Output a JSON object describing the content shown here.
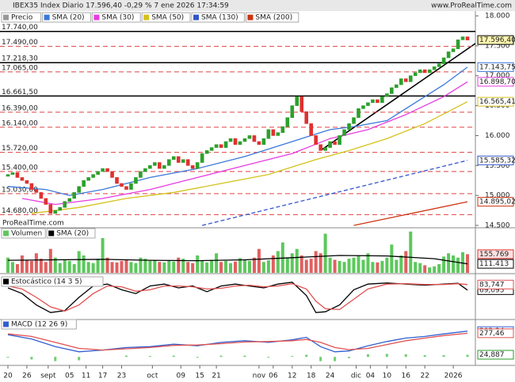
{
  "chart_data": [
    {
      "type": "candlestick",
      "title": "IBEX35 Index Diario 17.596,40 -0,29 % 7 ene 2026 17:34:59",
      "source": "www.ProRealTime.com",
      "watermark": "ProRealTime.com",
      "name": "Precio",
      "up_color": "#2ca02c",
      "down_color": "#e03030",
      "open": [
        15320,
        15350,
        15380,
        15300,
        15250,
        15200,
        15100,
        15050,
        14950,
        14850,
        14700,
        14750,
        14800,
        14900,
        14950,
        15050,
        15150,
        15250,
        15300,
        15350,
        15400,
        15450,
        15400,
        15300,
        15200,
        15150,
        15100,
        15200,
        15300,
        15400,
        15450,
        15500,
        15550,
        15450,
        15500,
        15600,
        15650,
        15550,
        15600,
        15500,
        15450,
        15550,
        15700,
        15750,
        15800,
        15850,
        15800,
        15900,
        15950,
        15850,
        15900,
        15950,
        16000,
        15900,
        15850,
        15950,
        16100,
        16000,
        16050,
        16150,
        16300,
        16500,
        16650,
        16400,
        16200,
        16000,
        15850,
        15750,
        15800,
        15900,
        15850,
        16000,
        16100,
        16200,
        16300,
        16450,
        16500,
        16550,
        16600,
        16550,
        16650,
        16700,
        16800,
        16850,
        16950,
        16900,
        17000,
        17050,
        17100,
        17050,
        17100,
        17150,
        17200,
        17300,
        17400,
        17450,
        17600,
        17650
      ],
      "close": [
        15350,
        15380,
        15300,
        15250,
        15200,
        15100,
        15050,
        14950,
        14850,
        14700,
        14750,
        14800,
        14900,
        14950,
        15050,
        15150,
        15250,
        15300,
        15350,
        15400,
        15450,
        15400,
        15300,
        15200,
        15150,
        15100,
        15200,
        15300,
        15400,
        15450,
        15500,
        15550,
        15450,
        15500,
        15600,
        15650,
        15550,
        15600,
        15500,
        15450,
        15550,
        15700,
        15750,
        15800,
        15850,
        15800,
        15900,
        15950,
        15850,
        15900,
        15950,
        16000,
        15900,
        15850,
        15950,
        16100,
        16000,
        16050,
        16150,
        16300,
        16500,
        16650,
        16400,
        16200,
        16000,
        15850,
        15750,
        15800,
        15900,
        15850,
        16000,
        16100,
        16200,
        16300,
        16450,
        16500,
        16550,
        16600,
        16550,
        16650,
        16700,
        16800,
        16850,
        16950,
        16900,
        17000,
        17050,
        17100,
        17050,
        17100,
        17150,
        17200,
        17300,
        17400,
        17450,
        17600,
        17650,
        17596.4
      ],
      "last_label": "17.596,40",
      "xlim": [
        -1,
        98
      ],
      "ylim": [
        14460,
        18080
      ],
      "yticks": [
        {
          "value": 18000,
          "label": "18.000"
        },
        {
          "value": 17500,
          "label": "17.500"
        },
        {
          "value": 17000,
          "label": "17.000"
        },
        {
          "value": 16500,
          "label": "16.500"
        },
        {
          "value": 16000,
          "label": "16.000"
        },
        {
          "value": 15500,
          "label": "15.500"
        },
        {
          "value": 15000,
          "label": "15.000"
        },
        {
          "value": 14500,
          "label": "14.500"
        }
      ],
      "levels": [
        {
          "value": 17740,
          "label": "17.740,00",
          "style": "solid"
        },
        {
          "value": 17490,
          "label": "17.490,00",
          "style": "dashed"
        },
        {
          "value": 17218.3,
          "label": "17.218,30",
          "style": "solid"
        },
        {
          "value": 17065,
          "label": "17.065,00",
          "style": "dashed"
        },
        {
          "value": 16661.5,
          "label": "16.661,50",
          "style": "solid"
        },
        {
          "value": 16390,
          "label": "16.390,00",
          "style": "dashed"
        },
        {
          "value": 16140,
          "label": "16.140,00",
          "style": "dashed"
        },
        {
          "value": 15720,
          "label": "15.720,00",
          "style": "dashed"
        },
        {
          "value": 15400,
          "label": "15.400,00",
          "style": "dashed"
        },
        {
          "value": 15030,
          "label": "15.030,00",
          "style": "dashed"
        },
        {
          "value": 14680,
          "label": "14.680,00",
          "style": "dashed"
        }
      ],
      "series": [
        {
          "name": "SMA (20)",
          "color": "#3a78d8",
          "dash": false,
          "x": [
            0,
            8,
            13,
            20,
            30,
            40,
            50,
            56,
            62,
            68,
            73,
            80,
            86,
            92,
            97
          ],
          "values": [
            15150,
            15100,
            15000,
            15100,
            15300,
            15450,
            15650,
            15800,
            15950,
            16100,
            16150,
            16250,
            16550,
            16850,
            17143.75
          ],
          "last_label": "17.143,75"
        },
        {
          "name": "SMA (30)",
          "color": "#e83ce0",
          "dash": false,
          "x": [
            3,
            10,
            20,
            30,
            40,
            50,
            60,
            68,
            76,
            84,
            92,
            97
          ],
          "values": [
            14950,
            14850,
            14950,
            15100,
            15300,
            15500,
            15700,
            15950,
            16100,
            16350,
            16650,
            16898.7
          ],
          "last_label": "16.898,70"
        },
        {
          "name": "SMA (50)",
          "color": "#d4c21a",
          "dash": false,
          "x": [
            5,
            15,
            25,
            35,
            45,
            55,
            65,
            72,
            80,
            88,
            97
          ],
          "values": [
            14700,
            14800,
            14950,
            15050,
            15200,
            15350,
            15600,
            15750,
            15950,
            16200,
            16565.41
          ],
          "last_label": "16.565,41"
        },
        {
          "name": "SMA (130)",
          "color": "#3355cc",
          "dash": true,
          "x": [
            41,
            97
          ],
          "values": [
            14500,
            15585.32
          ],
          "last_label": "15.585,32"
        },
        {
          "name": "SMA (200)",
          "color": "#cc3311",
          "dash": false,
          "x": [
            73,
            97
          ],
          "values": [
            14500,
            14895.02
          ],
          "last_label": "14.895,02"
        }
      ]
    },
    {
      "type": "bar",
      "name": "Volumen",
      "xlim": [
        -1,
        98
      ],
      "ylim": [
        70000,
        270000
      ],
      "last_label": "155.769",
      "values": [
        140000,
        120000,
        110000,
        150000,
        130000,
        125000,
        160000,
        135000,
        120000,
        180000,
        140000,
        115000,
        130000,
        125000,
        110000,
        170000,
        150000,
        120000,
        115000,
        135000,
        230000,
        140000,
        120000,
        118000,
        125000,
        130000,
        120000,
        115000,
        140000,
        135000,
        125000,
        130000,
        120000,
        118000,
        128000,
        122000,
        140000,
        135000,
        120000,
        115000,
        150000,
        125000,
        118000,
        130000,
        160000,
        120000,
        125000,
        115000,
        122000,
        138000,
        130000,
        125000,
        140000,
        180000,
        120000,
        128000,
        150000,
        170000,
        210000,
        140000,
        160000,
        180000,
        150000,
        130000,
        135000,
        170000,
        160000,
        250000,
        140000,
        130000,
        125000,
        120000,
        135000,
        140000,
        150000,
        130000,
        160000,
        120000,
        118000,
        125000,
        140000,
        200000,
        130000,
        150000,
        170000,
        260000,
        120000,
        115000,
        105000,
        95000,
        100000,
        110000,
        145000,
        160000,
        150000,
        140000,
        165000,
        155769
      ],
      "line": {
        "name": "SMA (20)",
        "color": "#000000",
        "x": [
          0,
          10,
          20,
          30,
          40,
          50,
          60,
          70,
          80,
          90,
          97
        ],
        "values": [
          128000,
          130000,
          132000,
          128000,
          126000,
          130000,
          140000,
          150000,
          148000,
          135000,
          111413
        ],
        "last_label": "111.413"
      }
    },
    {
      "type": "line",
      "name": "Estocástico (14 3 5)",
      "xlim": [
        -1,
        98
      ],
      "ylim": [
        0,
        100
      ],
      "series": [
        {
          "color": "#000000",
          "x": [
            0,
            3,
            6,
            9,
            12,
            15,
            18,
            21,
            24,
            27,
            30,
            33,
            36,
            39,
            42,
            45,
            48,
            51,
            54,
            57,
            60,
            63,
            65,
            67,
            70,
            73,
            76,
            80,
            84,
            88,
            92,
            95,
            97
          ],
          "values": [
            75,
            60,
            30,
            10,
            15,
            50,
            80,
            85,
            70,
            60,
            80,
            85,
            75,
            80,
            65,
            80,
            85,
            80,
            75,
            85,
            90,
            55,
            10,
            12,
            30,
            70,
            85,
            88,
            85,
            82,
            85,
            87,
            69.095
          ],
          "last_label": "69,095"
        },
        {
          "color": "#e05050",
          "x": [
            0,
            3,
            6,
            9,
            12,
            15,
            18,
            21,
            24,
            27,
            30,
            33,
            36,
            39,
            42,
            45,
            48,
            51,
            54,
            57,
            60,
            63,
            65,
            67,
            70,
            73,
            76,
            80,
            84,
            88,
            92,
            95,
            97
          ],
          "values": [
            80,
            72,
            50,
            25,
            14,
            30,
            60,
            80,
            78,
            66,
            70,
            80,
            80,
            78,
            72,
            74,
            80,
            82,
            78,
            80,
            86,
            72,
            40,
            20,
            18,
            45,
            72,
            85,
            86,
            84,
            84,
            86,
            83.747
          ],
          "last_label": "83,747"
        }
      ]
    },
    {
      "type": "line",
      "name": "MACD (12 26 9)",
      "xlim": [
        -1,
        98
      ],
      "ylim": [
        -100,
        420
      ],
      "xticks": [
        {
          "value": 0,
          "label": "20"
        },
        {
          "value": 4,
          "label": "26"
        },
        {
          "value": 8.5,
          "label": "sept"
        },
        {
          "value": 13,
          "label": "05"
        },
        {
          "value": 16.5,
          "label": "11"
        },
        {
          "value": 20,
          "label": "17"
        },
        {
          "value": 24,
          "label": "23"
        },
        {
          "value": 30.5,
          "label": "oct"
        },
        {
          "value": 36.5,
          "label": "09"
        },
        {
          "value": 40.5,
          "label": "15"
        },
        {
          "value": 44,
          "label": "21"
        },
        {
          "value": 53,
          "label": "nov"
        },
        {
          "value": 56,
          "label": "06"
        },
        {
          "value": 60,
          "label": "12"
        },
        {
          "value": 64,
          "label": "18"
        },
        {
          "value": 68,
          "label": "24"
        },
        {
          "value": 73.5,
          "label": "dic"
        },
        {
          "value": 76.5,
          "label": "04"
        },
        {
          "value": 80,
          "label": "10"
        },
        {
          "value": 84,
          "label": "16"
        },
        {
          "value": 88,
          "label": "22"
        },
        {
          "value": 94,
          "label": "2026"
        }
      ],
      "series": [
        {
          "color": "#2f5fd0",
          "x": [
            0,
            5,
            10,
            15,
            20,
            25,
            30,
            35,
            40,
            45,
            50,
            55,
            60,
            63,
            66,
            69,
            72,
            76,
            80,
            84,
            88,
            92,
            97
          ],
          "values": [
            260,
            210,
            120,
            60,
            80,
            110,
            120,
            150,
            130,
            170,
            190,
            170,
            200,
            230,
            120,
            60,
            70,
            130,
            180,
            220,
            240,
            270,
            302.34
          ],
          "last_label": "302,34"
        },
        {
          "color": "#e05050",
          "x": [
            0,
            5,
            10,
            15,
            20,
            25,
            30,
            35,
            40,
            45,
            50,
            55,
            60,
            63,
            66,
            69,
            72,
            76,
            80,
            84,
            88,
            92,
            97
          ],
          "values": [
            270,
            240,
            170,
            100,
            80,
            95,
            110,
            135,
            140,
            155,
            175,
            180,
            190,
            205,
            170,
            110,
            85,
            100,
            145,
            190,
            220,
            250,
            277.46
          ],
          "last_label": "277,46"
        }
      ],
      "histogram": {
        "color": "#6fcf6f",
        "x": [
          0,
          5,
          10,
          15,
          20,
          25,
          30,
          35,
          40,
          45,
          50,
          55,
          60,
          63,
          66,
          69,
          72,
          76,
          80,
          84,
          88,
          92,
          97
        ],
        "values": [
          -10,
          -30,
          -50,
          -40,
          0,
          15,
          10,
          15,
          -10,
          15,
          15,
          -10,
          10,
          25,
          -50,
          -50,
          -15,
          30,
          35,
          30,
          20,
          20,
          24.887
        ],
        "last_label": "24,887"
      }
    }
  ]
}
